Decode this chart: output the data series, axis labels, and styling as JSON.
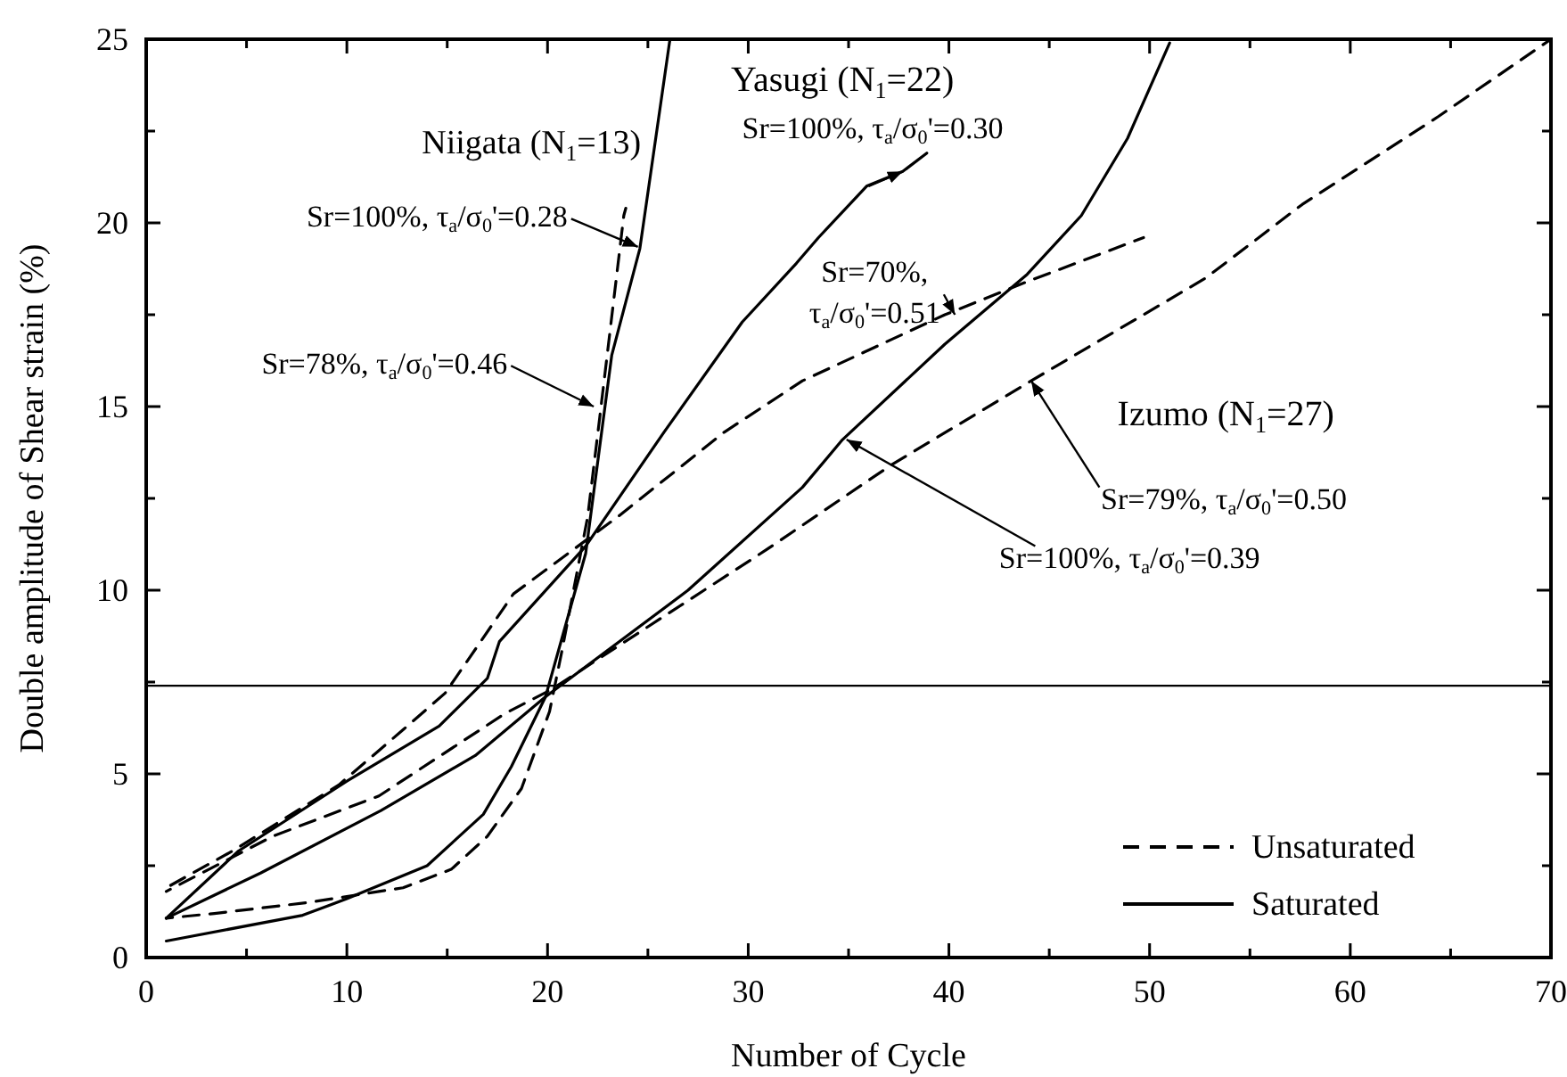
{
  "chart_data": {
    "type": "line",
    "xlabel": "Number of Cycle",
    "ylabel": "Double amplitude of Shear strain (%)",
    "xlim": [
      0,
      70
    ],
    "ylim": [
      0,
      25
    ],
    "xticks": [
      0,
      {
        "value": 5,
        "label": null
      },
      10,
      {
        "value": 15,
        "label": null
      },
      20,
      {
        "value": 25,
        "label": null
      },
      30,
      {
        "value": 35,
        "label": null
      },
      40,
      {
        "value": 45,
        "label": null
      },
      50,
      {
        "value": 55,
        "label": null
      },
      60,
      {
        "value": 65,
        "label": null
      },
      70
    ],
    "yticks": [
      0,
      {
        "value": 2.5,
        "label": null
      },
      5,
      {
        "value": 7.5,
        "label": null
      },
      10,
      {
        "value": 12.5,
        "label": null
      },
      15,
      {
        "value": 17.5,
        "label": null
      },
      20,
      {
        "value": 22.5,
        "label": null
      },
      25
    ],
    "grid": false,
    "legend": "bottom right",
    "marker": "none",
    "series": [
      {
        "name": "Saturated",
        "color": "#000000",
        "line_style": "solid",
        "x": [
          1,
          7.8,
          10,
          14,
          16.8,
          18.2,
          19.9,
          21.9,
          23.2,
          24.6,
          26.1
        ],
        "values": [
          0.45,
          1.15,
          1.6,
          2.5,
          3.9,
          5.2,
          7.1,
          11.0,
          16.4,
          19.3,
          25
        ]
      },
      {
        "name": "Unsaturated",
        "color": "#000000",
        "line_style": "dashed",
        "x": [
          1,
          3.4,
          8.1,
          12.8,
          15.2,
          17,
          18.7,
          20.1,
          20.7,
          22,
          22.6,
          23.8,
          23.9
        ],
        "values": [
          1.07,
          1.2,
          1.5,
          1.9,
          2.4,
          3.3,
          4.6,
          6.7,
          8.3,
          12,
          14.7,
          20.2,
          20.4
        ]
      },
      {
        "color": "#000000",
        "line_style": "solid",
        "x": [
          1,
          4.6,
          10,
          14.6,
          17,
          17.6,
          21.9,
          25.8,
          29.7,
          32.4,
          33.5,
          35.9,
          37.7,
          38.9
        ],
        "values": [
          1.07,
          2.9,
          4.8,
          6.3,
          7.6,
          8.6,
          11.2,
          14.3,
          17.3,
          18.9,
          19.6,
          21.0,
          21.4,
          21.9
        ]
      },
      {
        "color": "#000000",
        "line_style": "dashed",
        "x": [
          1,
          4.3,
          9.6,
          12.8,
          14.9,
          18.3,
          23.5,
          28.8,
          32.7,
          39.8,
          43.9,
          49.7
        ],
        "values": [
          1.9,
          2.9,
          4.7,
          6.2,
          7.2,
          9.9,
          12,
          14.3,
          15.7,
          17.5,
          18.4,
          19.6
        ]
      },
      {
        "color": "#000000",
        "line_style": "solid",
        "x": [
          1,
          5.7,
          11.7,
          16.4,
          19.9,
          27,
          32.7,
          34.7,
          39.8,
          43.9,
          46.6,
          48.9,
          51
        ],
        "values": [
          1.07,
          2.3,
          4.0,
          5.5,
          7.1,
          10,
          12.8,
          14.1,
          16.7,
          18.6,
          20.2,
          22.3,
          24.9
        ]
      },
      {
        "color": "#000000",
        "line_style": "dashed",
        "x": [
          1,
          6.3,
          11.6,
          17.9,
          20.2,
          30.9,
          37.1,
          44.1,
          52.8,
          57.6,
          64.4,
          70
        ],
        "values": [
          1.8,
          3.3,
          4.4,
          6.65,
          7.3,
          11.1,
          13.4,
          15.7,
          18.5,
          20.5,
          22.9,
          25
        ]
      }
    ],
    "ref_lines": [
      {
        "axis": "y",
        "value": 7.4,
        "color": "#000000",
        "line_style": "solid"
      }
    ],
    "annotations": [
      "Niigata (N$_{1}$=13)",
      {
        "text": "Sr=100%, τ$_{a}$/σ$_{0}$'=0.28",
        "x": 24.5,
        "y": 19.35
      },
      {
        "text": "Sr=78%, τ$_{a}$/σ$_{0}$'=0.46",
        "x": 22.3,
        "y": 15.0
      },
      "Yasugi (N$_{1}$=22)",
      {
        "text": "Sr=100%, τ$_{a}$/σ$_{0}$'=0.30",
        "x": 37.7,
        "y": 21.4
      },
      {
        "text": "Sr=70%,\nτ$_{a}$/σ$_{0}$'=0.51",
        "x": 40.3,
        "y": 17.5
      },
      "Izumo (N$_{1}$=27)",
      {
        "text": "Sr=79%, τ$_{a}$/σ$_{0}$'=0.50",
        "x": 44.1,
        "y": 15.7
      },
      {
        "text": "Sr=100%, τ$_{a}$/σ$_{0}$'=0.39",
        "x": 34.9,
        "y": 14.1
      }
    ]
  }
}
